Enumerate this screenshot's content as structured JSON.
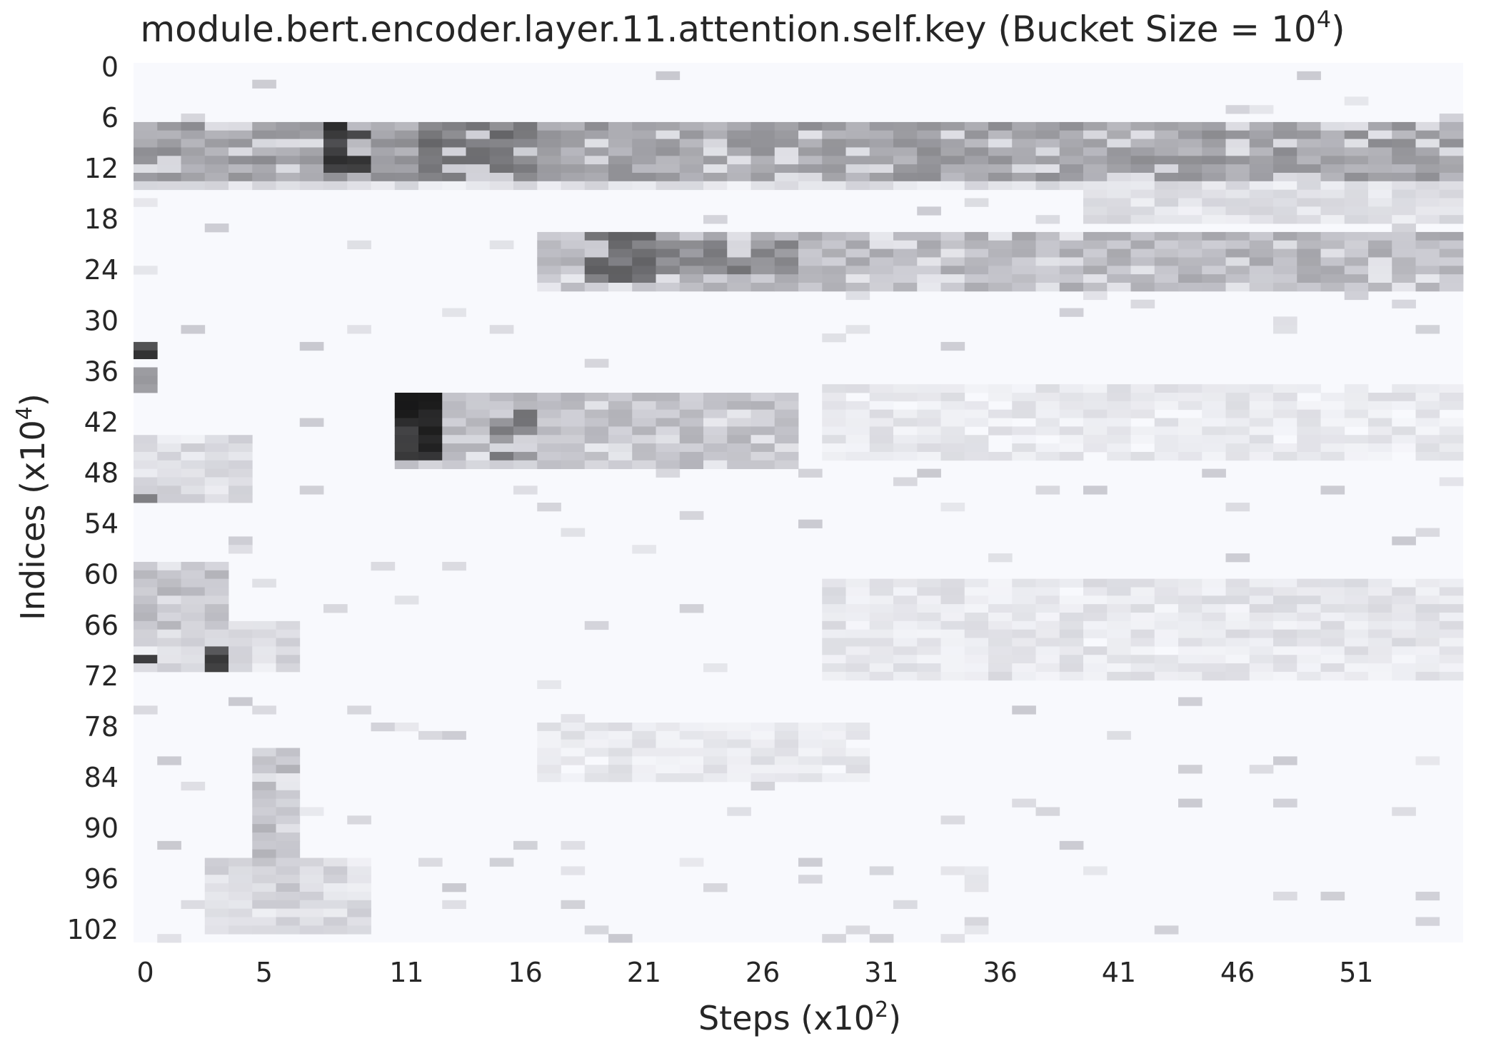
{
  "chart_data": {
    "type": "heatmap",
    "title": "module.bert.encoder.layer.11.attention.self.key (Bucket Size = 10",
    "title_superscript": "4",
    "title_suffix": ")",
    "xlabel": "Steps (x10",
    "xlabel_superscript": "2",
    "xlabel_suffix": ")",
    "ylabel": "Indices (x10",
    "ylabel_superscript": "4",
    "ylabel_suffix": ")",
    "x_tick_labels": [
      "0",
      "5",
      "11",
      "16",
      "21",
      "26",
      "31",
      "36",
      "41",
      "46",
      "51"
    ],
    "x_tick_steps": [
      0,
      5,
      11,
      16,
      21,
      26,
      31,
      36,
      41,
      46,
      51
    ],
    "y_tick_labels": [
      "0",
      "6",
      "12",
      "18",
      "24",
      "30",
      "36",
      "42",
      "48",
      "54",
      "60",
      "66",
      "72",
      "78",
      "84",
      "90",
      "96",
      "102"
    ],
    "y_tick_indices": [
      0,
      6,
      12,
      18,
      24,
      30,
      36,
      42,
      48,
      54,
      60,
      66,
      72,
      78,
      84,
      90,
      96,
      102
    ],
    "n_steps": 56,
    "n_indices": 104,
    "x_range": [
      0,
      55
    ],
    "y_range": [
      0,
      103
    ],
    "colormap": {
      "low": "#f8f9fd",
      "mid": "#c9c9d0",
      "high": "#151515"
    },
    "grid": false,
    "legend": "none",
    "regions": [
      {
        "steps": [
          0,
          55
        ],
        "indices": [
          7,
          13
        ],
        "intensity": 0.45
      },
      {
        "steps": [
          12,
          16
        ],
        "indices": [
          7,
          13
        ],
        "intensity": 0.6
      },
      {
        "steps": [
          8,
          9
        ],
        "indices": [
          7,
          12
        ],
        "intensity": 0.85
      },
      {
        "steps": [
          17,
          55
        ],
        "indices": [
          20,
          26
        ],
        "intensity": 0.35
      },
      {
        "steps": [
          19,
          21
        ],
        "indices": [
          20,
          25
        ],
        "intensity": 0.65
      },
      {
        "steps": [
          22,
          27
        ],
        "indices": [
          21,
          24
        ],
        "intensity": 0.55
      },
      {
        "steps": [
          0,
          55
        ],
        "indices": [
          12,
          14
        ],
        "intensity": 0.15
      },
      {
        "steps": [
          40,
          55
        ],
        "indices": [
          15,
          18
        ],
        "intensity": 0.15
      },
      {
        "steps": [
          11,
          27
        ],
        "indices": [
          39,
          47
        ],
        "intensity": 0.3
      },
      {
        "steps": [
          11,
          12
        ],
        "indices": [
          39,
          46
        ],
        "intensity": 0.9
      },
      {
        "steps": [
          15,
          16
        ],
        "indices": [
          41,
          46
        ],
        "intensity": 0.55
      },
      {
        "steps": [
          0,
          4
        ],
        "indices": [
          44,
          51
        ],
        "intensity": 0.2
      },
      {
        "steps": [
          0,
          0
        ],
        "indices": [
          33,
          34
        ],
        "intensity": 0.85
      },
      {
        "steps": [
          0,
          0
        ],
        "indices": [
          36,
          38
        ],
        "intensity": 0.45
      },
      {
        "steps": [
          0,
          0
        ],
        "indices": [
          50,
          51
        ],
        "intensity": 0.55
      },
      {
        "steps": [
          0,
          3
        ],
        "indices": [
          59,
          66
        ],
        "intensity": 0.3
      },
      {
        "steps": [
          0,
          6
        ],
        "indices": [
          66,
          71
        ],
        "intensity": 0.2
      },
      {
        "steps": [
          3,
          3
        ],
        "indices": [
          69,
          71
        ],
        "intensity": 0.8
      },
      {
        "steps": [
          0,
          0
        ],
        "indices": [
          70,
          70
        ],
        "intensity": 0.85
      },
      {
        "steps": [
          29,
          55
        ],
        "indices": [
          61,
          72
        ],
        "intensity": 0.12
      },
      {
        "steps": [
          5,
          6
        ],
        "indices": [
          81,
          97
        ],
        "intensity": 0.3
      },
      {
        "steps": [
          3,
          9
        ],
        "indices": [
          94,
          102
        ],
        "intensity": 0.2
      },
      {
        "steps": [
          17,
          30
        ],
        "indices": [
          78,
          84
        ],
        "intensity": 0.1
      },
      {
        "steps": [
          29,
          55
        ],
        "indices": [
          38,
          46
        ],
        "intensity": 0.1
      }
    ]
  }
}
